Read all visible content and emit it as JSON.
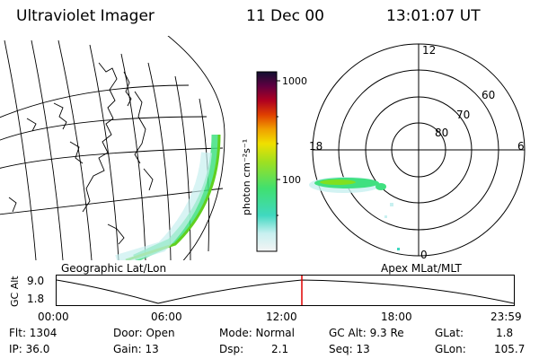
{
  "header": {
    "instrument": "Ultraviolet Imager",
    "date": "11 Dec 00",
    "time": "13:01:07 UT"
  },
  "globe_panel": {
    "label": "Geographic Lat/Lon"
  },
  "polar_panel": {
    "label": "Apex MLat/MLT",
    "mlt_labels": [
      "12",
      "18",
      "6",
      "0"
    ],
    "lat_labels": [
      "60",
      "70",
      "80"
    ]
  },
  "colorbar": {
    "unit_label": "photon cm⁻²s⁻¹",
    "tick_labels": [
      "1000",
      "100"
    ]
  },
  "timeline": {
    "y_label": "GC Alt",
    "y_ticks": [
      "9.0",
      "1.8"
    ],
    "x_ticks": [
      "00:00",
      "06:00",
      "12:00",
      "18:00",
      "23:59"
    ],
    "marker_time": "13:01:07"
  },
  "info": {
    "flt": "Flt: 1304",
    "ip": "IP: 36.0",
    "door": "Door: Open",
    "gain": "Gain: 13",
    "mode": "Mode: Normal",
    "dsp_label": "Dsp:",
    "dsp_value": "2.1",
    "gc_alt": "GC Alt: 9.3 Re",
    "seq": "Seq: 13",
    "glat_label": "GLat:",
    "glat_value": "1.8",
    "glon_label": "GLon:",
    "glon_value": "105.7"
  },
  "colors": {
    "marker": "#e00000",
    "aurora_low": "#c8f0f0",
    "aurora_mid": "#40e080",
    "aurora_high": "#60d020"
  }
}
